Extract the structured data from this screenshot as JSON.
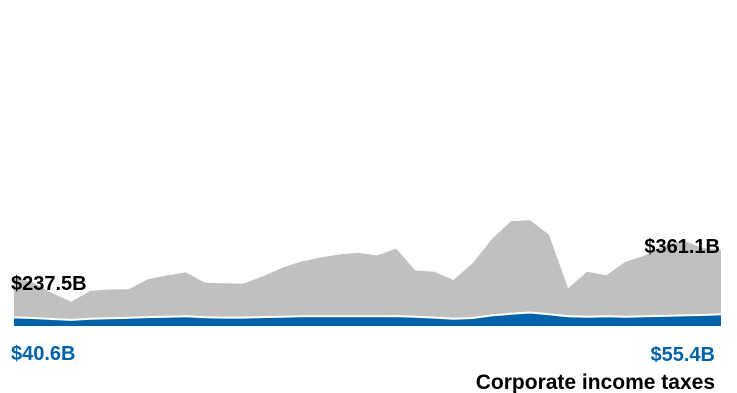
{
  "chart_data": {
    "type": "area",
    "title": "",
    "xlabel": "",
    "ylabel": "",
    "legend": "none",
    "grid": false,
    "ylim": [
      0,
      1450
    ],
    "x": [
      0,
      1,
      2,
      3,
      4,
      5,
      6,
      7,
      8,
      9,
      10,
      11,
      12,
      13,
      14,
      15,
      16,
      17,
      18,
      19,
      20,
      21,
      22,
      23,
      24,
      25,
      26,
      27,
      28,
      29,
      30,
      31,
      32,
      33,
      34,
      35,
      36,
      37
    ],
    "series": [
      {
        "name": "",
        "color": "#c0c0c0",
        "values": [
          237.5,
          205,
          156,
          115,
          167,
          173,
          174,
          222,
          240,
          254,
          205,
          203,
          201,
          234,
          275,
          304,
          324,
          339,
          347,
          334,
          367,
          263,
          257,
          218,
          297,
          411,
          496,
          502,
          432,
          178,
          258,
          240,
          304,
          333,
          380,
          407,
          370,
          361.1
        ],
        "first_label": "$237.5B",
        "last_label": "$361.1B"
      },
      {
        "name": "Corporate income taxes",
        "color": "#0062a8",
        "values": [
          40.6,
          38,
          33,
          29,
          34,
          37,
          39,
          42,
          44,
          46,
          41,
          40,
          40,
          42,
          44,
          46,
          46,
          46,
          46,
          46,
          47,
          44,
          40,
          34,
          38,
          50,
          58,
          64,
          56,
          46,
          44,
          46,
          44,
          46,
          48,
          50,
          52,
          55.4
        ],
        "first_label": "$40.6B",
        "last_label": "$55.4B"
      }
    ]
  }
}
